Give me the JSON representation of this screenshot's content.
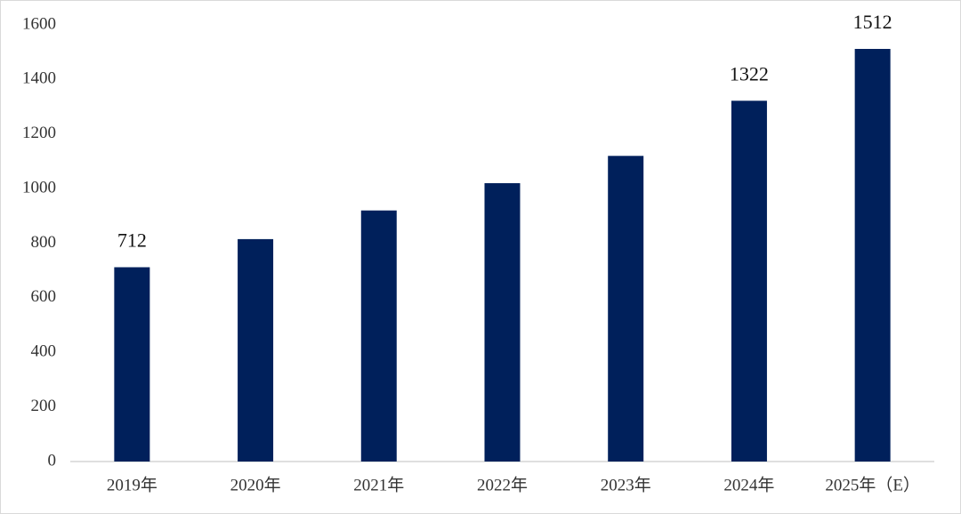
{
  "chart_data": {
    "type": "bar",
    "categories": [
      "2019年",
      "2020年",
      "2021年",
      "2022年",
      "2023年",
      "2024年",
      "2025年（E）"
    ],
    "values": [
      712,
      815,
      920,
      1020,
      1120,
      1322,
      1512
    ],
    "value_labels": [
      "712",
      null,
      null,
      null,
      null,
      "1322",
      "1512"
    ],
    "color": "#00205b",
    "ylim": [
      0,
      1600
    ],
    "yticks": [
      0,
      200,
      400,
      600,
      800,
      1000,
      1200,
      1400,
      1600
    ],
    "grid": false
  }
}
